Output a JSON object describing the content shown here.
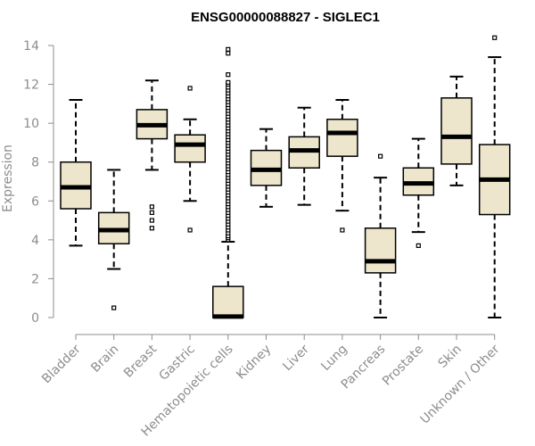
{
  "chart_data": {
    "type": "box",
    "title": "ENSG00000088827 - SIGLEC1",
    "ylabel": "Expression",
    "xlabel": "",
    "ylim": [
      0,
      14
    ],
    "yticks": [
      0,
      2,
      4,
      6,
      8,
      10,
      12,
      14
    ],
    "grid": false,
    "colors": {
      "box_fill": "#ede6cc",
      "stroke": "#000000",
      "median": "#000000",
      "axis": "#8c8c8c"
    },
    "categories": [
      "Bladder",
      "Brain",
      "Breast",
      "Gastric",
      "Hematopoietic cells",
      "Kidney",
      "Liver",
      "Lung",
      "Pancreas",
      "Prostate",
      "Skin",
      "Unknown / Other"
    ],
    "boxes": [
      {
        "min": 3.7,
        "q1": 5.6,
        "median": 6.7,
        "q3": 8.0,
        "max": 11.2,
        "outliers": []
      },
      {
        "min": 2.5,
        "q1": 3.8,
        "median": 4.5,
        "q3": 5.4,
        "max": 7.6,
        "outliers": [
          0.5
        ]
      },
      {
        "min": 7.6,
        "q1": 9.2,
        "median": 9.9,
        "q3": 10.7,
        "max": 12.2,
        "outliers": [
          5.7,
          5.4,
          5.0,
          4.6
        ]
      },
      {
        "min": 6.0,
        "q1": 8.0,
        "median": 8.9,
        "q3": 9.4,
        "max": 10.2,
        "outliers": [
          11.8,
          4.5
        ]
      },
      {
        "min": 0.0,
        "q1": 0.0,
        "median": 0.05,
        "q3": 1.6,
        "max": 3.9,
        "outliers": [
          4.0,
          4.1,
          4.2,
          4.35,
          4.5,
          4.65,
          4.8,
          4.95,
          5.1,
          5.25,
          5.4,
          5.55,
          5.7,
          5.85,
          6.0,
          6.15,
          6.3,
          6.45,
          6.6,
          6.75,
          6.9,
          7.05,
          7.2,
          7.35,
          7.5,
          7.65,
          7.8,
          7.95,
          8.1,
          8.25,
          8.4,
          8.55,
          8.7,
          8.85,
          9.0,
          9.15,
          9.3,
          9.45,
          9.6,
          9.75,
          9.9,
          10.05,
          10.2,
          10.35,
          10.5,
          10.65,
          10.8,
          10.95,
          11.1,
          11.25,
          11.4,
          11.55,
          11.7,
          11.85,
          12.0,
          12.1,
          12.5,
          13.6,
          13.8
        ]
      },
      {
        "min": 5.7,
        "q1": 6.8,
        "median": 7.6,
        "q3": 8.6,
        "max": 9.7,
        "outliers": []
      },
      {
        "min": 5.8,
        "q1": 7.7,
        "median": 8.6,
        "q3": 9.3,
        "max": 10.8,
        "outliers": []
      },
      {
        "min": 5.5,
        "q1": 8.3,
        "median": 9.5,
        "q3": 10.2,
        "max": 11.2,
        "outliers": [
          4.5
        ]
      },
      {
        "min": 0.0,
        "q1": 2.3,
        "median": 2.9,
        "q3": 4.6,
        "max": 7.2,
        "outliers": [
          8.3
        ]
      },
      {
        "min": 4.4,
        "q1": 6.3,
        "median": 6.9,
        "q3": 7.7,
        "max": 9.2,
        "outliers": [
          3.7
        ]
      },
      {
        "min": 6.8,
        "q1": 7.9,
        "median": 9.3,
        "q3": 11.3,
        "max": 12.4,
        "outliers": []
      },
      {
        "min": 0.0,
        "q1": 5.3,
        "median": 7.1,
        "q3": 8.9,
        "max": 13.4,
        "outliers": [
          14.4
        ]
      }
    ]
  }
}
